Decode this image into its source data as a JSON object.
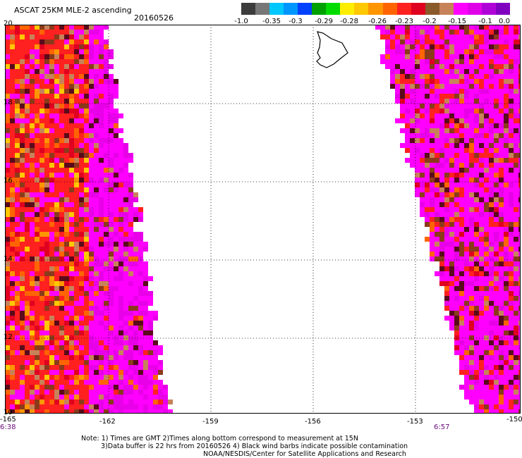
{
  "header": {
    "title": "ASCAT 25KM MLE-2 ascending",
    "date": "20160526"
  },
  "legend": {
    "labels": [
      "-1.0",
      "-0.35",
      "-0.3",
      "-0.29",
      "-0.28",
      "-0.26",
      "-0.23",
      "-0.2",
      "-0.15",
      "-0.1",
      "0.0"
    ],
    "colors": [
      "#3c3c3c",
      "#777777",
      "#00c8ff",
      "#0096ff",
      "#0040ff",
      "#00a000",
      "#00dc00",
      "#ffee00",
      "#ffc800",
      "#ff9600",
      "#ff6400",
      "#ff2020",
      "#e00020",
      "#8b5a2b",
      "#c8825a",
      "#ff00ff",
      "#e000e8",
      "#b000d8",
      "#8000c0"
    ]
  },
  "map": {
    "lat_labels": [
      "20",
      "18",
      "16",
      "14",
      "12",
      "10"
    ],
    "lon_labels": [
      "-165",
      "-162",
      "-159",
      "-156",
      "-153",
      "-150"
    ],
    "time_left": "6:38",
    "time_right": "6:57",
    "cell_palette": [
      "#ff00ff",
      "#e800e8",
      "#c000d0",
      "#ff2020",
      "#ff6400",
      "#8b3a1a",
      "#5a0a1a",
      "#c8825a",
      "#ffc800",
      "#ff9600",
      "#e00020"
    ]
  },
  "notes": {
    "line1": "Note: 1) Times are GMT 2)Times along bottom correspond to measurement at 15N",
    "line2": "3)Data buffer is 22 hrs from 20160526 4) Black wind barbs indicate possible contamination",
    "line3": "NOAA/NESDIS/Center for Satellite Applications and Research"
  }
}
